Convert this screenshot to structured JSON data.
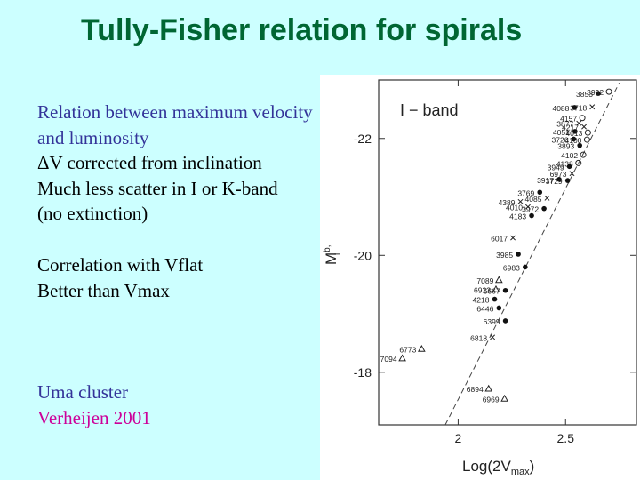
{
  "slide": {
    "title": "Tully-Fisher relation for spirals",
    "text_lines_1": [
      "Relation between maximum velocity",
      "and luminosity",
      "ΔV corrected from inclination",
      "Much less scatter in I or K-band",
      "(no extinction)"
    ],
    "text_lines_2": [
      "Correlation with Vflat",
      "Better than Vmax"
    ],
    "text_lines_3": [
      "Uma cluster",
      "Verheijen 2001"
    ],
    "colors": {
      "background": "#ccffff",
      "title": "#006633",
      "blue_text": "#333399",
      "magenta_text": "#cc0099"
    }
  },
  "chart_data": {
    "type": "scatter",
    "band_label": "I − band",
    "xlabel": "Log(2V",
    "xlabel_sub": "max",
    "xlabel_end": ")",
    "ylabel": "M",
    "ylabel_sup": "b,i",
    "ylabel_sub": "I",
    "xlim": [
      1.63,
      2.83
    ],
    "ylim": [
      -17.1,
      -23.0
    ],
    "xticks": [
      {
        "v": 2.0,
        "label": "2"
      },
      {
        "v": 2.5,
        "label": "2.5"
      }
    ],
    "yticks": [
      {
        "v": -22,
        "label": "-22"
      },
      {
        "v": -20,
        "label": "-20"
      },
      {
        "v": -18,
        "label": "-18"
      }
    ],
    "fit_line": [
      [
        1.94,
        -17.1
      ],
      [
        2.75,
        -22.95
      ]
    ],
    "points": [
      {
        "label": "3853",
        "x": 2.652,
        "y": -22.77,
        "m": "dot"
      },
      {
        "label": "3992",
        "x": 2.702,
        "y": -22.8,
        "m": "circle"
      },
      {
        "label": "3718",
        "x": 2.624,
        "y": -22.54,
        "m": "cross"
      },
      {
        "label": "4088",
        "x": 2.542,
        "y": -22.53,
        "m": "dot"
      },
      {
        "label": "4157",
        "x": 2.578,
        "y": -22.35,
        "m": "circle"
      },
      {
        "label": "3877",
        "x": 2.562,
        "y": -22.26,
        "m": "cross"
      },
      {
        "label": "4217",
        "x": 2.586,
        "y": -22.2,
        "m": "cross"
      },
      {
        "label": "4051",
        "x": 2.544,
        "y": -22.12,
        "m": "dot"
      },
      {
        "label": "4013",
        "x": 2.604,
        "y": -22.1,
        "m": "circle"
      },
      {
        "label": "3726",
        "x": 2.538,
        "y": -21.99,
        "m": "dot"
      },
      {
        "label": "4100",
        "x": 2.6,
        "y": -21.98,
        "m": "circle"
      },
      {
        "label": "3893",
        "x": 2.566,
        "y": -21.88,
        "m": "dot"
      },
      {
        "label": "4102",
        "x": 2.582,
        "y": -21.72,
        "m": "circle"
      },
      {
        "label": "4138",
        "x": 2.56,
        "y": -21.58,
        "m": "circle"
      },
      {
        "label": "3949",
        "x": 2.518,
        "y": -21.52,
        "m": "dot"
      },
      {
        "label": "6973",
        "x": 2.53,
        "y": -21.4,
        "m": "cross"
      },
      {
        "label": "3917",
        "x": 2.47,
        "y": -21.3,
        "m": "dot"
      },
      {
        "label": "3729",
        "x": 2.51,
        "y": -21.28,
        "m": "dot"
      },
      {
        "label": "3769",
        "x": 2.38,
        "y": -21.08,
        "m": "dot"
      },
      {
        "label": "4085",
        "x": 2.414,
        "y": -20.98,
        "m": "cross"
      },
      {
        "label": "4389",
        "x": 2.29,
        "y": -20.92,
        "m": "cross"
      },
      {
        "label": "4010",
        "x": 2.325,
        "y": -20.83,
        "m": "cross"
      },
      {
        "label": "3972",
        "x": 2.4,
        "y": -20.8,
        "m": "dot"
      },
      {
        "label": "4183",
        "x": 2.342,
        "y": -20.68,
        "m": "dot"
      },
      {
        "label": "6017",
        "x": 2.255,
        "y": -20.3,
        "m": "cross"
      },
      {
        "label": "3985",
        "x": 2.28,
        "y": -20.02,
        "m": "dot"
      },
      {
        "label": "6983",
        "x": 2.312,
        "y": -19.8,
        "m": "dot"
      },
      {
        "label": "7089",
        "x": 2.19,
        "y": -19.58,
        "m": "triangle"
      },
      {
        "label": "6923",
        "x": 2.176,
        "y": -19.42,
        "m": "triangle"
      },
      {
        "label": "6667",
        "x": 2.22,
        "y": -19.4,
        "m": "dot"
      },
      {
        "label": "4218",
        "x": 2.17,
        "y": -19.25,
        "m": "dot"
      },
      {
        "label": "6446",
        "x": 2.19,
        "y": -19.1,
        "m": "dot"
      },
      {
        "label": "6399",
        "x": 2.22,
        "y": -18.88,
        "m": "dot"
      },
      {
        "label": "6818",
        "x": 2.16,
        "y": -18.6,
        "m": "cross"
      },
      {
        "label": "6773",
        "x": 1.83,
        "y": -18.4,
        "m": "triangle"
      },
      {
        "label": "7094",
        "x": 1.74,
        "y": -18.24,
        "m": "triangle"
      },
      {
        "label": "6894",
        "x": 2.142,
        "y": -17.72,
        "m": "triangle"
      },
      {
        "label": "6969",
        "x": 2.216,
        "y": -17.55,
        "m": "triangle"
      }
    ]
  }
}
